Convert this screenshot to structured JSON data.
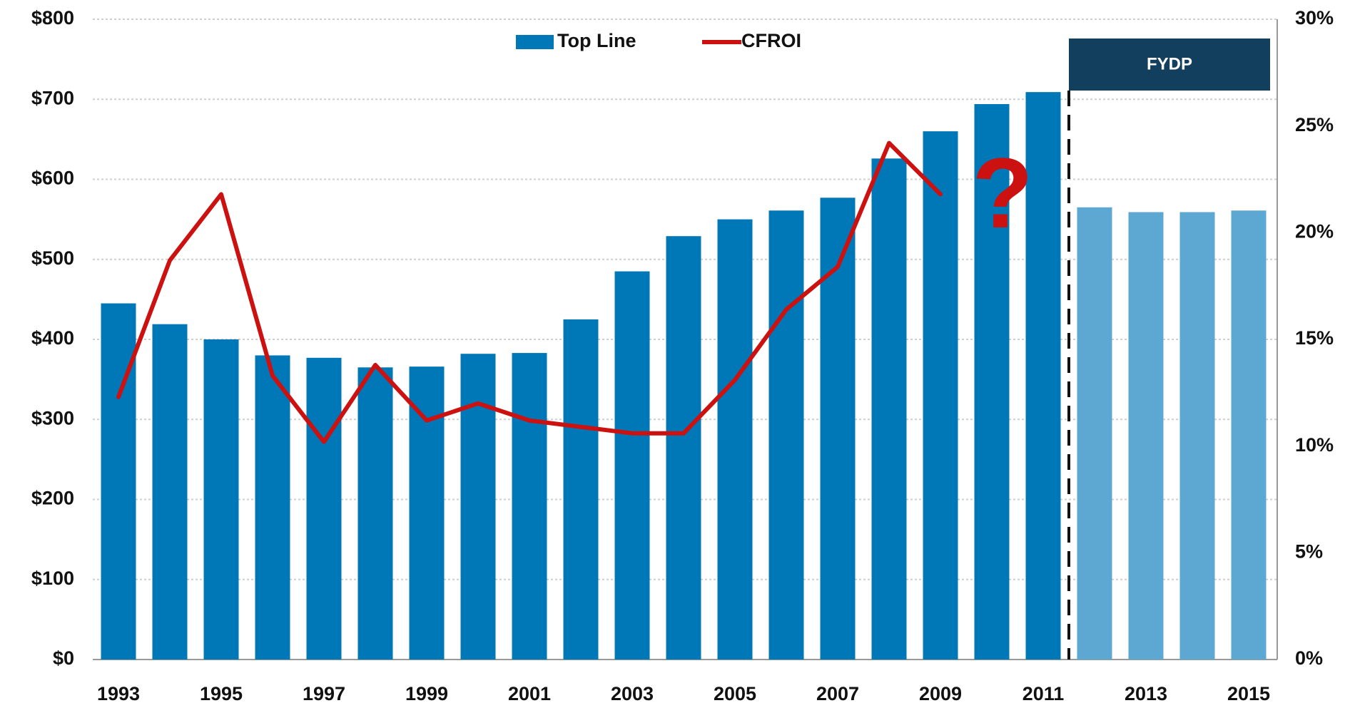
{
  "chart_data": {
    "type": "bar_line",
    "categories": [
      "1993",
      null,
      "1995",
      null,
      "1997",
      null,
      "1999",
      null,
      "2001",
      null,
      "2003",
      null,
      "2005",
      null,
      "2007",
      null,
      "2009",
      null,
      "2011",
      null,
      "2013",
      null,
      "2015"
    ],
    "series": [
      {
        "name": "Top Line",
        "type": "bar",
        "color": "#0077b6",
        "bar_colors": [
          "#0077b6",
          "#0077b6",
          "#0077b6",
          "#0077b6",
          "#0077b6",
          "#0077b6",
          "#0077b6",
          "#0077b6",
          "#0077b6",
          "#0077b6",
          "#0077b6",
          "#0077b6",
          "#0077b6",
          "#0077b6",
          "#0077b6",
          "#0077b6",
          "#0077b6",
          "#0077b6",
          "#0077b6",
          "#5ca8d3",
          "#5ca8d3",
          "#5ca8d3",
          "#5ca8d3"
        ],
        "values": [
          445,
          419,
          400,
          380,
          377,
          365,
          366,
          382,
          383,
          425,
          485,
          529,
          550,
          561,
          577,
          626,
          660,
          694,
          709,
          565,
          559,
          559,
          561
        ]
      },
      {
        "name": "CFROI",
        "type": "line",
        "axis": "y2",
        "color": "#cc1111",
        "values": [
          12.3,
          18.7,
          21.8,
          13.3,
          10.2,
          13.8,
          11.2,
          12.0,
          11.2,
          10.9,
          10.6,
          10.6,
          13.1,
          16.4,
          18.4,
          24.2,
          21.8,
          null,
          null,
          null,
          null,
          null,
          null
        ]
      }
    ],
    "ylim": [
      0,
      800
    ],
    "yticks": [
      {
        "value": 0,
        "label": "$0"
      },
      {
        "value": 100,
        "label": "$100"
      },
      {
        "value": 200,
        "label": "$200"
      },
      {
        "value": 300,
        "label": "$300"
      },
      {
        "value": 400,
        "label": "$400"
      },
      {
        "value": 500,
        "label": "$500"
      },
      {
        "value": 600,
        "label": "$600"
      },
      {
        "value": 700,
        "label": "$700"
      },
      {
        "value": 800,
        "label": "$800"
      }
    ],
    "y2lim": [
      0,
      30
    ],
    "y2ticks": [
      {
        "value": 0,
        "label": "0%"
      },
      {
        "value": 5,
        "label": "5%"
      },
      {
        "value": 10,
        "label": "10%"
      },
      {
        "value": 15,
        "label": "15%"
      },
      {
        "value": 20,
        "label": "20%"
      },
      {
        "value": 25,
        "label": "25%"
      },
      {
        "value": 30,
        "label": "30%"
      }
    ],
    "grid": true,
    "legend": "top",
    "annotations": [
      "FYDP",
      "?"
    ]
  }
}
